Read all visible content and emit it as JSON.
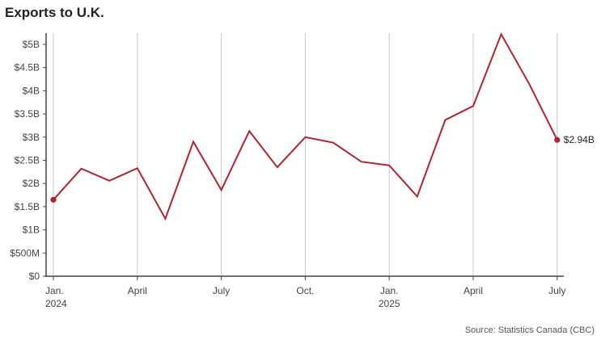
{
  "page": {
    "title": "Exports to U.K.",
    "source": "Source: Statistics Canada (CBC)"
  },
  "chart_data": {
    "type": "line",
    "title": "Exports to U.K.",
    "xlabel": "",
    "ylabel": "",
    "ylim": [
      0,
      5000000000
    ],
    "yticks": [
      {
        "value": 0,
        "label": "$0"
      },
      {
        "value": 500000000,
        "label": "$500M"
      },
      {
        "value": 1000000000,
        "label": "$1B"
      },
      {
        "value": 1500000000,
        "label": "$1.5B"
      },
      {
        "value": 2000000000,
        "label": "$2B"
      },
      {
        "value": 2500000000,
        "label": "$2.5B"
      },
      {
        "value": 3000000000,
        "label": "$3B"
      },
      {
        "value": 3500000000,
        "label": "$3.5B"
      },
      {
        "value": 4000000000,
        "label": "$4B"
      },
      {
        "value": 4500000000,
        "label": "$4.5B"
      },
      {
        "value": 5000000000,
        "label": "$5B"
      }
    ],
    "xticks": [
      {
        "x": "2024-01",
        "label": "Jan.",
        "sublabel": "2024"
      },
      {
        "x": "2024-04",
        "label": "April",
        "sublabel": ""
      },
      {
        "x": "2024-07",
        "label": "July",
        "sublabel": ""
      },
      {
        "x": "2024-10",
        "label": "Oct.",
        "sublabel": ""
      },
      {
        "x": "2025-01",
        "label": "Jan.",
        "sublabel": "2025"
      },
      {
        "x": "2025-04",
        "label": "April",
        "sublabel": ""
      },
      {
        "x": "2025-07",
        "label": "July",
        "sublabel": ""
      }
    ],
    "grid": "vertical",
    "series": [
      {
        "color": "#b5232e",
        "points": [
          {
            "x": "2024-01",
            "y": 1650000000
          },
          {
            "x": "2024-02",
            "y": 2320000000
          },
          {
            "x": "2024-03",
            "y": 2060000000
          },
          {
            "x": "2024-04",
            "y": 2330000000
          },
          {
            "x": "2024-05",
            "y": 1240000000
          },
          {
            "x": "2024-06",
            "y": 2900000000
          },
          {
            "x": "2024-07",
            "y": 1860000000
          },
          {
            "x": "2024-08",
            "y": 3130000000
          },
          {
            "x": "2024-09",
            "y": 2350000000
          },
          {
            "x": "2024-10",
            "y": 3000000000
          },
          {
            "x": "2024-11",
            "y": 2880000000
          },
          {
            "x": "2024-12",
            "y": 2470000000
          },
          {
            "x": "2025-01",
            "y": 2390000000
          },
          {
            "x": "2025-02",
            "y": 1720000000
          },
          {
            "x": "2025-03",
            "y": 3370000000
          },
          {
            "x": "2025-04",
            "y": 3670000000
          },
          {
            "x": "2025-05",
            "y": 5220000000
          },
          {
            "x": "2025-06",
            "y": 4150000000
          },
          {
            "x": "2025-07",
            "y": 2940000000
          }
        ],
        "end_label": "$2.94B",
        "markers": [
          "first",
          "last"
        ]
      }
    ]
  }
}
